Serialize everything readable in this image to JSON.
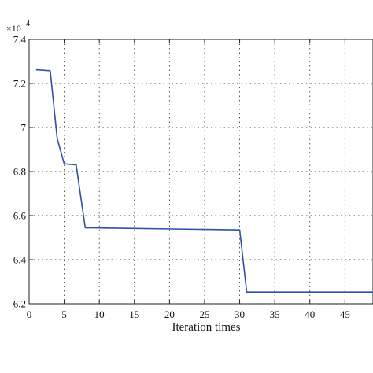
{
  "chart_data": {
    "type": "line",
    "title": "",
    "xlabel": "Iteration times",
    "ylabel": "",
    "y_exponent_base": "×10",
    "y_exponent_power": "4",
    "xlim": [
      0,
      49
    ],
    "ylim": [
      6.2,
      7.4
    ],
    "x_ticks": [
      0,
      5,
      10,
      15,
      20,
      25,
      30,
      35,
      40,
      45
    ],
    "y_ticks": [
      6.2,
      6.4,
      6.6,
      6.8,
      7.0,
      7.2,
      7.4
    ],
    "x_tick_labels": [
      "0",
      "5",
      "10",
      "15",
      "20",
      "25",
      "30",
      "35",
      "40",
      "45"
    ],
    "y_tick_labels": [
      "6.2",
      "6.4",
      "6.6",
      "6.8",
      "7",
      "7.2",
      "7.4"
    ],
    "grid": true,
    "grid_style": "dotted",
    "series": [
      {
        "color": "#2f4fa8",
        "x": [
          1,
          3,
          4,
          5,
          6.7,
          8,
          30,
          31,
          49
        ],
        "y": [
          7.262,
          7.258,
          6.95,
          6.835,
          6.83,
          6.545,
          6.535,
          6.253,
          6.253
        ]
      }
    ]
  }
}
